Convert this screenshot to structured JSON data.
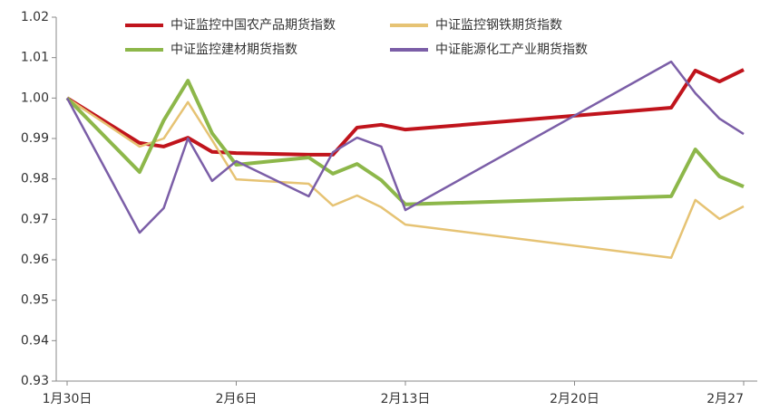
{
  "chart_data": {
    "type": "line",
    "x": [
      "1月30日",
      "2月2日",
      "2月3日",
      "2月4日",
      "2月5日",
      "2月6日",
      "2月9日",
      "2月10日",
      "2月11日",
      "2月12日",
      "2月13日",
      "2月24日",
      "2月25日",
      "2月26日",
      "2月27日"
    ],
    "series": [
      {
        "name": "中证监控中国农产品期货指数",
        "color": "#c0141c",
        "values": [
          1.0,
          0.9889,
          0.988,
          0.9902,
          0.9867,
          0.9864,
          0.986,
          0.986,
          0.9927,
          0.9934,
          0.9922,
          0.9976,
          1.0068,
          1.0041,
          1.007
        ]
      },
      {
        "name": "中证监控钢铁期货指数",
        "color": "#e6c374",
        "values": [
          1.0,
          0.988,
          0.99,
          0.999,
          0.9896,
          0.9799,
          0.9788,
          0.9734,
          0.9759,
          0.973,
          0.9687,
          0.9605,
          0.9748,
          0.9701,
          0.9732
        ]
      },
      {
        "name": "中证监控建材期货指数",
        "color": "#8db74a",
        "values": [
          1.0,
          0.9817,
          0.9945,
          1.0043,
          0.9913,
          0.9835,
          0.9853,
          0.9813,
          0.9837,
          0.9797,
          0.9737,
          0.9757,
          0.9873,
          0.9806,
          0.9781
        ]
      },
      {
        "name": "中证能源化工产业期货指数",
        "color": "#7b5ea7",
        "values": [
          1.0,
          0.9667,
          0.9728,
          0.99,
          0.9795,
          0.9844,
          0.9757,
          0.9866,
          0.9902,
          0.988,
          0.9723,
          1.009,
          1.0012,
          0.9949,
          0.9911
        ]
      }
    ],
    "xlim": [
      "1月30日",
      "2月27日"
    ],
    "xticks": [
      "1月30日",
      "2月6日",
      "2月13日",
      "2月20日",
      "2月27"
    ],
    "ylim": [
      0.93,
      1.02
    ],
    "yticks": [
      {
        "value": 0.93,
        "label": "0.93"
      },
      {
        "value": 0.94,
        "label": "0.94"
      },
      {
        "value": 0.95,
        "label": "0.95"
      },
      {
        "value": 0.96,
        "label": "0.96"
      },
      {
        "value": 0.97,
        "label": "0.97"
      },
      {
        "value": 0.98,
        "label": "0.98"
      },
      {
        "value": 0.99,
        "label": "0.99"
      },
      {
        "value": 1.0,
        "label": "1.00"
      },
      {
        "value": 1.01,
        "label": "1.01"
      },
      {
        "value": 1.02,
        "label": "1.02"
      }
    ],
    "grid": false
  }
}
